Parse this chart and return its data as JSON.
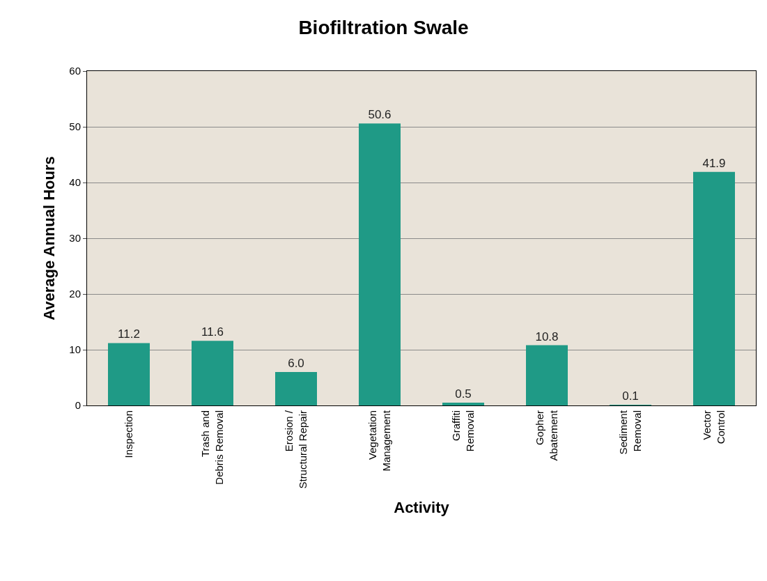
{
  "chart_data": {
    "type": "bar",
    "title": "Biofiltration Swale",
    "xlabel": "Activity",
    "ylabel": "Average Annual Hours",
    "categories": [
      "Inspection",
      "Trash and\nDebris Removal",
      "Erosion /\nStructural Repair",
      "Vegetation\nManagement",
      "Graffiti\nRemoval",
      "Gopher\nAbatement",
      "Sediment\nRemoval",
      "Vector\nControl"
    ],
    "values": [
      11.2,
      11.6,
      6.0,
      50.6,
      0.5,
      10.8,
      0.1,
      41.9
    ],
    "value_labels": [
      "11.2",
      "11.6",
      "6.0",
      "50.6",
      "0.5",
      "10.8",
      "0.1",
      "41.9"
    ],
    "color": "#1f9a86",
    "ylim": [
      0,
      60
    ],
    "yticks": [
      0,
      10,
      20,
      30,
      40,
      50,
      60
    ],
    "grid": "y"
  }
}
